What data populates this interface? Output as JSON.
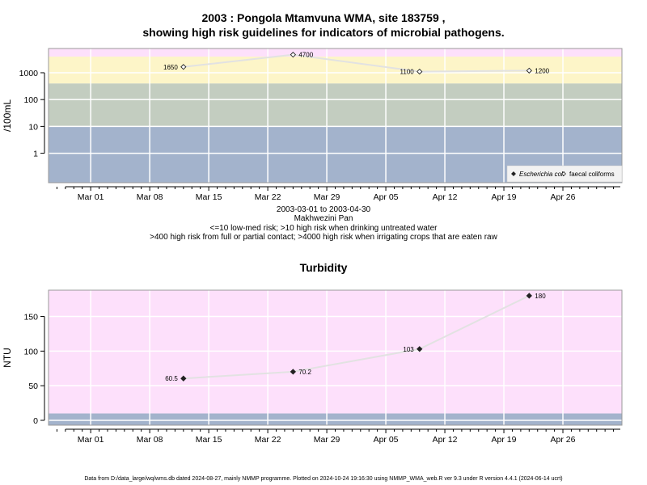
{
  "title_line1": "2003 : Pongola Mtamvuna WMA, site 183759 ,",
  "title_line2": "showing high risk guidelines for indicators of microbial pathogens.",
  "info_lines": [
    "2003-03-01 to 2003-04-30",
    "Makhwezini Pan",
    "<=10 low-med risk; >10 high risk when drinking untreated water",
    ">400 high risk from full or partial contact; >4000 high risk when irrigating crops that are eaten raw"
  ],
  "footer": "Data from D:/data_large/wq/wms.db dated 2024-08-27, mainly NMMP programme. Plotted on 2024-10-24 19:16:30 using NMMP_WMA_web.R ver 9.3 under R version 4.4.1 (2024-06-14 ucrt)",
  "colors": {
    "band_low": "#a3b3cc",
    "band_mid": "#c3cdc0",
    "band_high": "#fdf5c8",
    "band_top": "#fde0fb",
    "turbidity_bg": "#fde0fb",
    "line": "#e2e2e2",
    "grid": "#ffffff"
  },
  "chart_data": [
    {
      "type": "line",
      "title": "",
      "ylabel": "/100mL",
      "xlabel": "",
      "y_scale": "log10",
      "x_range": [
        "2003-02-24",
        "2003-05-03"
      ],
      "ylim": [
        0.08,
        8000
      ],
      "x_ticks": [
        "Mar 01",
        "Mar 08",
        "Mar 15",
        "Mar 22",
        "Mar 29",
        "Apr 05",
        "Apr 12",
        "Apr 19",
        "Apr 26"
      ],
      "y_ticks": [
        "1",
        "10",
        "100",
        "1000"
      ],
      "y_tick_values": [
        1,
        10,
        100,
        1000
      ],
      "risk_bands": [
        {
          "from": 0.08,
          "to": 10,
          "color": "band_low"
        },
        {
          "from": 10,
          "to": 400,
          "color": "band_mid"
        },
        {
          "from": 400,
          "to": 4000,
          "color": "band_high"
        },
        {
          "from": 4000,
          "to": 8000,
          "color": "band_top"
        }
      ],
      "grid": true,
      "legend_position": "bottom-right",
      "series": [
        {
          "name": "Escherichia coli",
          "marker": "filled-diamond",
          "x": [],
          "y": [],
          "labels": []
        },
        {
          "name": "faecal coliforms",
          "marker": "open-diamond",
          "x": [
            "2003-03-12",
            "2003-03-25",
            "2003-04-09",
            "2003-04-22"
          ],
          "y": [
            1650,
            4700,
            1100,
            1200
          ],
          "labels": [
            "1650",
            "4700",
            "1100",
            "1200"
          ],
          "label_side": [
            "left",
            "right",
            "left",
            "right"
          ]
        }
      ]
    },
    {
      "type": "line",
      "title": "Turbidity",
      "ylabel": "NTU",
      "xlabel": "",
      "y_scale": "linear",
      "x_range": [
        "2003-02-24",
        "2003-05-03"
      ],
      "ylim": [
        -7,
        188
      ],
      "x_ticks": [
        "Mar 01",
        "Mar 08",
        "Mar 15",
        "Mar 22",
        "Mar 29",
        "Apr 05",
        "Apr 12",
        "Apr 19",
        "Apr 26"
      ],
      "y_ticks": [
        "0",
        "50",
        "100",
        "150"
      ],
      "y_tick_values": [
        0,
        50,
        100,
        150
      ],
      "risk_bands": [
        {
          "from": -7,
          "to": 10,
          "color": "band_low"
        },
        {
          "from": 10,
          "to": 188,
          "color": "turbidity_bg"
        }
      ],
      "grid": true,
      "series": [
        {
          "name": "",
          "marker": "filled-diamond",
          "x": [
            "2003-03-12",
            "2003-03-25",
            "2003-04-09",
            "2003-04-22"
          ],
          "y": [
            60.5,
            70.2,
            103,
            180
          ],
          "labels": [
            "60.5",
            "70.2",
            "103",
            "180"
          ],
          "label_side": [
            "left",
            "right",
            "left",
            "right"
          ]
        }
      ]
    }
  ]
}
